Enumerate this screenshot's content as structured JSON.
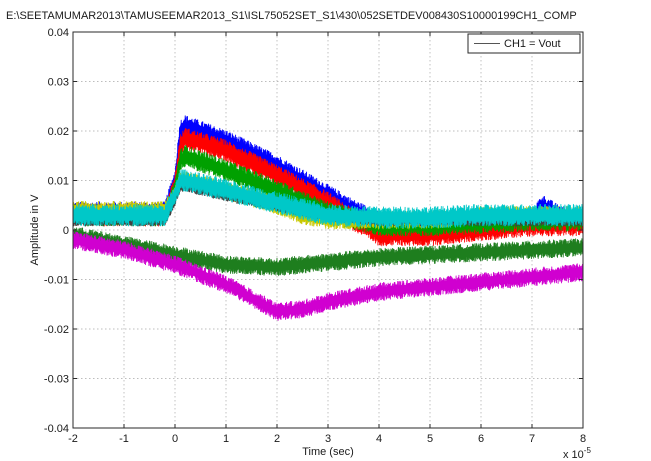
{
  "chart_data": {
    "type": "line",
    "title": "E:\\SEETAMUMAR2013\\TAMUSEEMAR2013_S1\\ISL75052SET_S1\\430\\052SETDEV008430S10000199CH1_COMP",
    "xlabel": "Time (sec)",
    "ylabel": "Amplitude in V",
    "x_multiplier_label": "x 10",
    "x_multiplier_exp": "-5",
    "xlim": [
      -2,
      8
    ],
    "ylim": [
      -0.04,
      0.04
    ],
    "x_ticks": [
      "-2",
      "-1",
      "0",
      "1",
      "2",
      "3",
      "4",
      "5",
      "6",
      "7",
      "8"
    ],
    "y_ticks": [
      "-0.04",
      "-0.03",
      "-0.02",
      "-0.01",
      "0",
      "0.01",
      "0.02",
      "0.03",
      "0.04"
    ],
    "grid": true,
    "legend_position": "top-right",
    "legend": [
      "CH1 = Vout"
    ],
    "series": [
      {
        "color": "#0000ff",
        "noise": 0.0022,
        "x": [
          -2,
          -0.2,
          0,
          0.1,
          0.2,
          1,
          2,
          3,
          3.5,
          4,
          5,
          6,
          7,
          7.2,
          7.5,
          8
        ],
        "y": [
          0.0035,
          0.0035,
          0.01,
          0.02,
          0.021,
          0.018,
          0.013,
          0.007,
          0.004,
          0.0015,
          0.0005,
          0.001,
          0.002,
          0.005,
          0.003,
          0.002
        ]
      },
      {
        "color": "#ff0000",
        "noise": 0.0022,
        "x": [
          -2,
          -0.2,
          0,
          0.1,
          0.2,
          1,
          2,
          3,
          3.5,
          4,
          5,
          6,
          7,
          8
        ],
        "y": [
          0.003,
          0.003,
          0.009,
          0.017,
          0.0185,
          0.016,
          0.011,
          0.0055,
          0.002,
          -0.001,
          -0.001,
          0,
          0.001,
          0.001
        ]
      },
      {
        "color": "#00a000",
        "noise": 0.0022,
        "x": [
          -2,
          -0.2,
          0,
          0.1,
          0.2,
          1,
          2,
          3,
          4,
          5,
          6,
          7,
          8
        ],
        "y": [
          0.003,
          0.003,
          0.008,
          0.014,
          0.015,
          0.012,
          0.008,
          0.0035,
          0.001,
          0.001,
          0.0015,
          0.002,
          0.002
        ]
      },
      {
        "color": "#c8c800",
        "noise": 0.0018,
        "x": [
          -2,
          -0.2,
          0,
          0.1,
          0.2,
          1,
          2,
          2.5,
          3,
          4,
          5,
          6,
          7,
          8
        ],
        "y": [
          0.004,
          0.004,
          0.007,
          0.01,
          0.01,
          0.008,
          0.005,
          0.003,
          0.002,
          0.002,
          0.002,
          0.003,
          0.003,
          0.003
        ]
      },
      {
        "color": "#404040",
        "noise": 0.0012,
        "x": [
          -2,
          -0.2,
          0,
          0.1,
          0.2,
          1,
          2,
          3,
          4,
          5,
          6,
          7,
          8
        ],
        "y": [
          0.002,
          0.002,
          0.006,
          0.009,
          0.009,
          0.007,
          0.005,
          0.003,
          0.002,
          0.002,
          0.002,
          0.002,
          0.002
        ]
      },
      {
        "color": "#00c8c8",
        "noise": 0.0022,
        "x": [
          -2,
          -0.2,
          0,
          0.1,
          0.2,
          1,
          2,
          3,
          4,
          5,
          6,
          7,
          8
        ],
        "y": [
          0.003,
          0.003,
          0.007,
          0.01,
          0.01,
          0.008,
          0.0055,
          0.003,
          0.0025,
          0.0025,
          0.003,
          0.003,
          0.003
        ]
      },
      {
        "color": "#1e7e1e",
        "noise": 0.0018,
        "x": [
          -2,
          -1,
          0,
          1,
          2,
          3,
          4,
          5,
          6,
          7,
          8
        ],
        "y": [
          -0.001,
          -0.003,
          -0.005,
          -0.007,
          -0.0075,
          -0.0065,
          -0.0055,
          -0.005,
          -0.0045,
          -0.004,
          -0.0035
        ]
      },
      {
        "color": "#d000d0",
        "noise": 0.0018,
        "x": [
          -2,
          -1,
          0,
          1,
          2,
          2.5,
          3,
          4,
          5,
          6,
          7,
          8
        ],
        "y": [
          -0.002,
          -0.004,
          -0.007,
          -0.011,
          -0.0165,
          -0.016,
          -0.0145,
          -0.0125,
          -0.0115,
          -0.0105,
          -0.0095,
          -0.0085
        ]
      }
    ]
  }
}
